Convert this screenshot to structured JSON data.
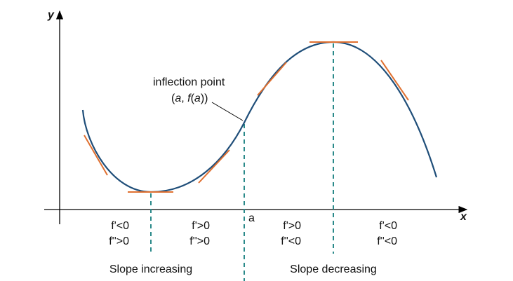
{
  "axes": {
    "x_label": "x",
    "y_label": "y",
    "a_label": "a"
  },
  "annotation": {
    "line1": "inflection point",
    "line2_open": "(",
    "a": "a",
    "sep": ", ",
    "f": "f",
    "paren_open": "(",
    "a2": "a",
    "close": "))"
  },
  "regions": [
    {
      "d1": "f'<0",
      "d2": "f''>0"
    },
    {
      "d1": "f'>0",
      "d2": "f''>0"
    },
    {
      "d1": "f'>0",
      "d2": "f''<0"
    },
    {
      "d1": "f'<0",
      "d2": "f''<0"
    }
  ],
  "captions": {
    "left": "Slope increasing",
    "right": "Slope decreasing"
  },
  "colors": {
    "curve": "#1f4e79",
    "tangent": "#e07030",
    "dashed": "#2a8a8a",
    "axis": "#000000"
  }
}
